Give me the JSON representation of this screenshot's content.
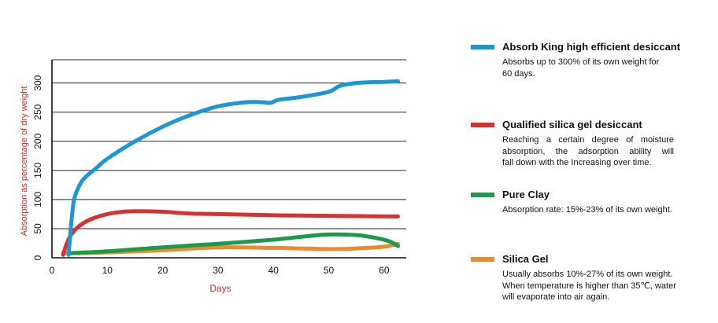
{
  "chart_data": {
    "type": "line",
    "title": "",
    "xlabel": "Days",
    "ylabel": "Absorption as percentage of dry weight",
    "xlim": [
      0,
      64
    ],
    "ylim": [
      0,
      340
    ],
    "xticks": [
      0,
      10,
      20,
      30,
      40,
      50,
      60
    ],
    "yticks": [
      0,
      50,
      100,
      150,
      200,
      250,
      300
    ],
    "xtick_labels": [
      "0",
      "10",
      "20",
      "30",
      "40",
      "50",
      "60"
    ],
    "ytick_labels": [
      "0",
      "50",
      "100",
      "150",
      "200",
      "250",
      "300"
    ],
    "grid": "horizontal",
    "colors": {
      "axis_label": "#d12a2a",
      "grid": "#222222"
    },
    "series": [
      {
        "name": "Absorb King high efficient desiccant",
        "color": "#1b96d6",
        "x": [
          3,
          3.5,
          4,
          5,
          6,
          8,
          10,
          15,
          20,
          25,
          30,
          35,
          38,
          39.5,
          40.5,
          41.5,
          45,
          50,
          52,
          55,
          60,
          62.5
        ],
        "y": [
          5,
          60,
          100,
          125,
          138,
          154,
          170,
          200,
          225,
          245,
          260,
          267,
          267,
          266,
          270,
          272,
          276,
          285,
          295,
          300,
          302,
          303
        ]
      },
      {
        "name": "Qualified silica gel desiccant",
        "color": "#d63330",
        "x": [
          2,
          2.7,
          3.5,
          5,
          7,
          10,
          13,
          16,
          20,
          25,
          30,
          40,
          50,
          60,
          62.5
        ],
        "y": [
          5,
          25,
          40,
          55,
          66,
          75,
          79,
          80,
          79,
          76,
          75,
          73,
          72,
          71,
          71
        ]
      },
      {
        "name": "Pure Clay",
        "color": "#1a9a4a",
        "x": [
          3,
          10,
          20,
          30,
          40,
          45,
          50,
          55,
          58,
          61,
          62.5
        ],
        "y": [
          8,
          11,
          18,
          24,
          31,
          36,
          40,
          39,
          35,
          28,
          20
        ]
      },
      {
        "name": "Silica Gel",
        "color": "#ef8a2b",
        "x": [
          2,
          5,
          10,
          20,
          30,
          40,
          45,
          50,
          55,
          60,
          62.5
        ],
        "y": [
          8,
          8,
          9,
          13,
          18,
          17,
          16,
          15,
          16,
          19,
          24
        ]
      }
    ]
  },
  "legend": [
    {
      "title": "Absorb King high efficient desiccant",
      "color": "#1b96d6",
      "desc": [
        "Absorbs up to 300% of its own weight for",
        "60 days."
      ]
    },
    {
      "title": "Qualified silica gel desiccant",
      "color": "#d63330",
      "desc": [
        "Reaching a certain degree of moisture",
        "absorption, the adsorption ability will",
        "fall down with the Increasing over time."
      ]
    },
    {
      "title": "Pure Clay",
      "color": "#1a9a4a",
      "desc": [
        "Absorption rate: 15%-23% of its own weight."
      ]
    },
    {
      "title": "Silica Gel",
      "color": "#ef8a2b",
      "desc": [
        "Usually absorbs 10%-27% of its own weight.",
        "When temperature is higher than 35℃, water",
        "will evaporate into air again."
      ]
    }
  ]
}
